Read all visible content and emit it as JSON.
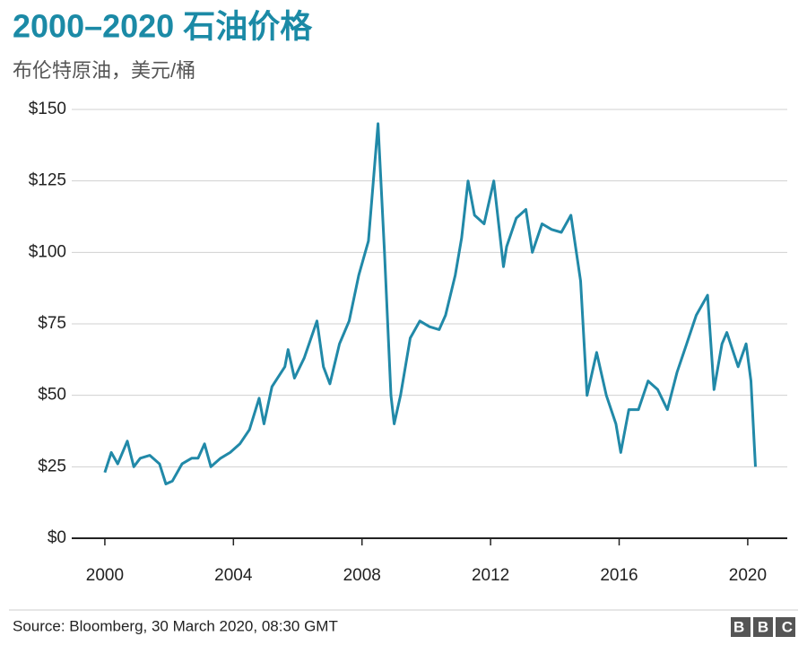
{
  "chart_data": {
    "type": "line",
    "title": "2000–2020 石油价格",
    "subtitle": "布伦特原油，美元/桶",
    "source": "Source: Bloomberg, 30 March 2020, 08:30 GMT",
    "logo": "BBC",
    "color": "#2189a8",
    "grid": true,
    "xlim": [
      1998.97,
      2021.23
    ],
    "xticks": [
      2000,
      2004,
      2008,
      2012,
      2016,
      2020
    ],
    "ylim": [
      0,
      150
    ],
    "yticks": [
      {
        "value": 0,
        "label": "$0"
      },
      {
        "value": 25,
        "label": "$25"
      },
      {
        "value": 50,
        "label": "$50"
      },
      {
        "value": 75,
        "label": "$75"
      },
      {
        "value": 100,
        "label": "$100"
      },
      {
        "value": 125,
        "label": "$125"
      },
      {
        "value": 150,
        "label": "$150"
      }
    ],
    "x": [
      2000.0,
      2000.2,
      2000.4,
      2000.7,
      2000.9,
      2001.1,
      2001.4,
      2001.7,
      2001.9,
      2002.1,
      2002.4,
      2002.7,
      2002.9,
      2003.1,
      2003.3,
      2003.6,
      2003.9,
      2004.2,
      2004.5,
      2004.8,
      2004.95,
      2005.2,
      2005.6,
      2005.7,
      2005.9,
      2006.2,
      2006.6,
      2006.8,
      2007.0,
      2007.3,
      2007.6,
      2007.9,
      2008.2,
      2008.5,
      2008.7,
      2008.9,
      2009.0,
      2009.2,
      2009.5,
      2009.8,
      2010.1,
      2010.4,
      2010.6,
      2010.9,
      2011.1,
      2011.3,
      2011.5,
      2011.8,
      2012.1,
      2012.4,
      2012.5,
      2012.8,
      2013.1,
      2013.3,
      2013.6,
      2013.9,
      2014.2,
      2014.5,
      2014.8,
      2015.0,
      2015.3,
      2015.6,
      2015.9,
      2016.05,
      2016.3,
      2016.6,
      2016.9,
      2017.2,
      2017.5,
      2017.8,
      2018.1,
      2018.4,
      2018.75,
      2018.95,
      2019.2,
      2019.35,
      2019.7,
      2019.95,
      2020.1,
      2020.24
    ],
    "values": [
      23,
      30,
      26,
      34,
      25,
      28,
      29,
      26,
      19,
      20,
      26,
      28,
      28,
      33,
      25,
      28,
      30,
      33,
      38,
      49,
      40,
      53,
      60,
      66,
      56,
      63,
      76,
      60,
      54,
      68,
      76,
      92,
      104,
      145,
      100,
      50,
      40,
      50,
      70,
      76,
      74,
      73,
      78,
      92,
      105,
      125,
      113,
      110,
      125,
      95,
      102,
      112,
      115,
      100,
      110,
      108,
      107,
      113,
      90,
      50,
      65,
      50,
      40,
      30,
      45,
      45,
      55,
      52,
      45,
      58,
      68,
      78,
      85,
      52,
      68,
      72,
      60,
      68,
      55,
      25
    ]
  }
}
